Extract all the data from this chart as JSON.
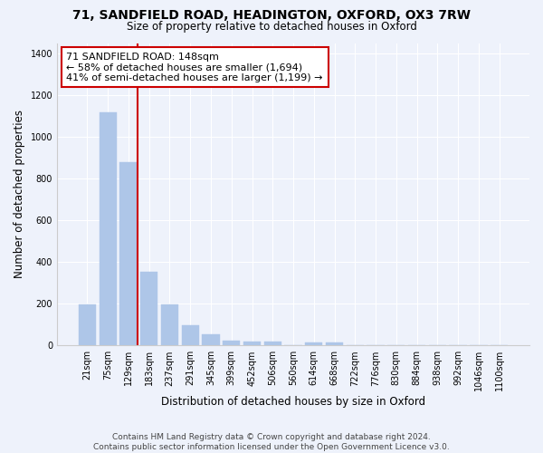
{
  "title_line1": "71, SANDFIELD ROAD, HEADINGTON, OXFORD, OX3 7RW",
  "title_line2": "Size of property relative to detached houses in Oxford",
  "xlabel": "Distribution of detached houses by size in Oxford",
  "ylabel": "Number of detached properties",
  "categories": [
    "21sqm",
    "75sqm",
    "129sqm",
    "183sqm",
    "237sqm",
    "291sqm",
    "345sqm",
    "399sqm",
    "452sqm",
    "506sqm",
    "560sqm",
    "614sqm",
    "668sqm",
    "722sqm",
    "776sqm",
    "830sqm",
    "884sqm",
    "938sqm",
    "992sqm",
    "1046sqm",
    "1100sqm"
  ],
  "values": [
    197,
    1118,
    877,
    352,
    195,
    98,
    55,
    25,
    20,
    17,
    0,
    15,
    15,
    0,
    0,
    0,
    0,
    0,
    0,
    0,
    0
  ],
  "bar_color": "#aec6e8",
  "bar_edge_color": "#aec6e8",
  "vline_color": "#cc0000",
  "vline_x": 2.45,
  "annotation_text": "71 SANDFIELD ROAD: 148sqm\n← 58% of detached houses are smaller (1,694)\n41% of semi-detached houses are larger (1,199) →",
  "annotation_box_color": "#ffffff",
  "annotation_box_edge": "#cc0000",
  "background_color": "#eef2fb",
  "grid_color": "#ffffff",
  "ylim": [
    0,
    1450
  ],
  "yticks": [
    0,
    200,
    400,
    600,
    800,
    1000,
    1200,
    1400
  ],
  "footer_text": "Contains HM Land Registry data © Crown copyright and database right 2024.\nContains public sector information licensed under the Open Government Licence v3.0.",
  "fig_width": 6.0,
  "fig_height": 5.0,
  "dpi": 100
}
